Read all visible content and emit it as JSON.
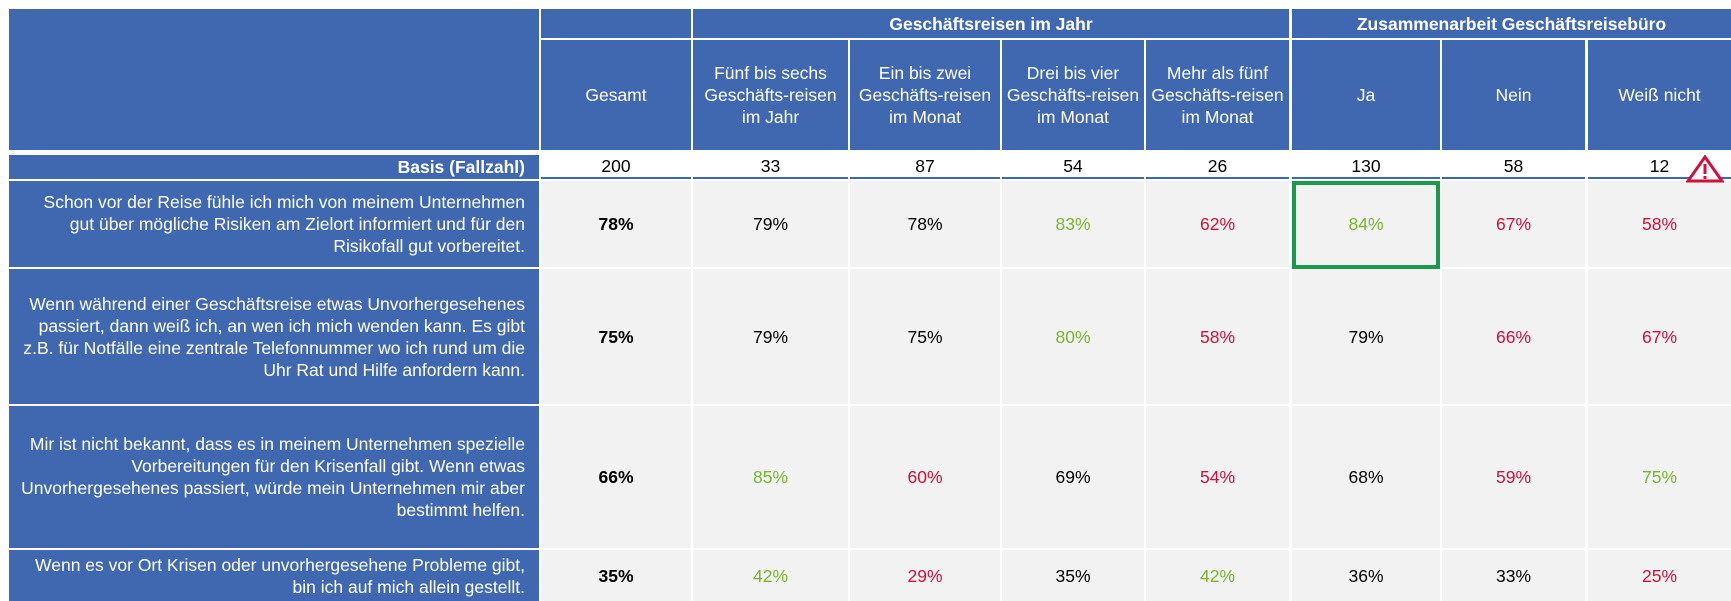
{
  "table": {
    "groups": [
      "Geschäftsreisen im Jahr",
      "Zusammenarbeit Geschäftsreisebüro"
    ],
    "columns": [
      "Gesamt",
      "Fünf bis sechs Geschäfts-reisen im Jahr",
      "Ein bis zwei Geschäfts-reisen im Monat",
      "Drei bis vier Geschäfts-reisen im Monat",
      "Mehr als fünf Geschäfts-reisen im Monat",
      "Ja",
      "Nein",
      "Weiß nicht"
    ],
    "basis": {
      "label": "Basis (Fallzahl)",
      "values": [
        "200",
        "33",
        "87",
        "54",
        "26",
        "130",
        "58",
        "12"
      ]
    },
    "rows": [
      {
        "label": "Schon vor der Reise fühle ich mich von meinem Unternehmen gut über mögliche Risiken am Zielort informiert und für den Risikofall gut vorbereitet.",
        "values": [
          "78%",
          "79%",
          "78%",
          "83%",
          "62%",
          "84%",
          "67%",
          "58%"
        ],
        "colors": [
          "#000000",
          "#000000",
          "#000000",
          "#7ab52e",
          "#d0103a",
          "#7ab52e",
          "#d0103a",
          "#d0103a"
        ]
      },
      {
        "label": "Wenn während einer Geschäftsreise etwas Unvorhergesehenes passiert, dann weiß ich, an wen ich mich wenden kann. Es gibt z.B. für Notfälle eine zentrale Telefonnummer wo ich rund um die Uhr Rat und Hilfe anfordern kann.",
        "values": [
          "75%",
          "79%",
          "75%",
          "80%",
          "58%",
          "79%",
          "66%",
          "67%"
        ],
        "colors": [
          "#000000",
          "#000000",
          "#000000",
          "#7ab52e",
          "#d0103a",
          "#000000",
          "#d0103a",
          "#d0103a"
        ]
      },
      {
        "label": "Mir ist nicht bekannt, dass es in meinem Unternehmen spezielle Vorbereitungen für den Krisenfall gibt. Wenn etwas Unvorhergesehenes passiert, würde mein Unternehmen mir aber bestimmt helfen.",
        "values": [
          "66%",
          "85%",
          "60%",
          "69%",
          "54%",
          "68%",
          "59%",
          "75%"
        ],
        "colors": [
          "#000000",
          "#7ab52e",
          "#d0103a",
          "#000000",
          "#d0103a",
          "#000000",
          "#d0103a",
          "#7ab52e"
        ]
      },
      {
        "label": "Wenn es vor Ort Krisen oder unvorhergesehene Probleme gibt, bin ich auf mich allein gestellt.",
        "values": [
          "35%",
          "42%",
          "29%",
          "35%",
          "42%",
          "36%",
          "33%",
          "25%"
        ],
        "colors": [
          "#000000",
          "#7ab52e",
          "#d0103a",
          "#000000",
          "#7ab52e",
          "#000000",
          "#000000",
          "#d0103a"
        ]
      }
    ]
  }
}
